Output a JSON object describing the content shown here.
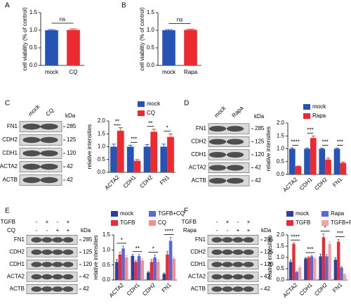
{
  "chart_data": [
    {
      "type": "bar",
      "panel": "A",
      "ylabel": "cell viability (% of control)",
      "categories": [
        "mock",
        "CQ"
      ],
      "values": [
        1.0,
        1.01
      ],
      "errors": [
        0.02,
        0.03
      ],
      "colors": [
        "#2554b5",
        "#ec2a2f"
      ],
      "annotation": "ns",
      "ylim": [
        0,
        1.5
      ],
      "yticks": [
        {
          "value": 0,
          "label": "0.0"
        },
        0.5,
        {
          "value": 1,
          "label": "1.0"
        },
        1.5
      ]
    },
    {
      "type": "bar",
      "panel": "B",
      "ylabel": "cell viability (% of control)",
      "categories": [
        "mock",
        "Rapa"
      ],
      "values": [
        1.0,
        1.01
      ],
      "errors": [
        0.02,
        0.02
      ],
      "colors": [
        "#2554b5",
        "#ec2a2f"
      ],
      "annotation": "ns",
      "ylim": [
        0,
        1.5
      ],
      "yticks": [
        {
          "value": 0,
          "label": "0.0"
        },
        0.5,
        {
          "value": 1,
          "label": "1.0"
        },
        1.5
      ]
    },
    {
      "type": "grouped-bar",
      "ylabel": "relative intensities",
      "categories": [
        "ACTA2",
        "CDH1",
        "CDH2",
        "FN1"
      ],
      "series": [
        {
          "name": "mock",
          "color": "#2554b5",
          "values": [
            1.0,
            1.0,
            1.0,
            1.0
          ],
          "errors": [
            0.1,
            0.06,
            0.08,
            0.1
          ]
        },
        {
          "name": "CQ",
          "color": "#ec2a2f",
          "values": [
            1.62,
            0.45,
            1.58,
            1.38
          ],
          "errors": [
            0.12,
            0.05,
            0.1,
            0.12
          ]
        }
      ],
      "significance": [
        "**",
        "***",
        "**",
        "*"
      ],
      "ylim": [
        0,
        2
      ],
      "yticks": [
        {
          "value": 0,
          "label": "0.0"
        },
        0.5,
        {
          "value": 1,
          "label": "1.0"
        },
        1.5,
        {
          "value": 2,
          "label": "2.0"
        }
      ]
    },
    {
      "type": "grouped-bar",
      "ylabel": "relative intensities",
      "categories": [
        "ACTA2",
        "CDH1",
        "CDH2",
        "FN1"
      ],
      "series": [
        {
          "name": "mock",
          "color": "#2554b5",
          "values": [
            1.0,
            1.0,
            1.0,
            1.0
          ],
          "errors": [
            0.03,
            0.03,
            0.03,
            0.03
          ]
        },
        {
          "name": "Rapa",
          "color": "#ec2a2f",
          "values": [
            0.32,
            1.42,
            0.58,
            0.45
          ],
          "errors": [
            0.01,
            0.08,
            0.06,
            0.04
          ]
        }
      ],
      "significance": [
        "****",
        "***",
        "***",
        "***"
      ],
      "ylim": [
        0,
        2
      ],
      "yticks": [
        {
          "value": 0,
          "label": "0.0"
        },
        0.5,
        {
          "value": 1,
          "label": "1.0"
        },
        1.5,
        {
          "value": 2,
          "label": "2.0"
        }
      ]
    },
    {
      "type": "grouped-bar",
      "ylabel": "relative intensities",
      "categories": [
        "ACTA2",
        "CDH1",
        "CDH2",
        "FN1"
      ],
      "series": [
        {
          "name": "mock",
          "color": "#2b3f9e",
          "values": [
            0.6,
            0.8,
            0.25,
            0.2
          ],
          "errors": [
            0.08,
            0.05,
            0.03,
            0.03
          ]
        },
        {
          "name": "TGFB",
          "color": "#ec2a2f",
          "values": [
            0.85,
            0.6,
            0.6,
            0.85
          ],
          "errors": [
            0.08,
            0.05,
            0.08,
            0.1
          ]
        },
        {
          "name": "TGFB+CQ",
          "color": "#5669d6",
          "values": [
            1.05,
            0.8,
            0.75,
            1.3
          ],
          "errors": [
            0.08,
            0.05,
            0.08,
            0.12
          ]
        },
        {
          "name": "CQ",
          "color": "#f28f8f",
          "values": [
            0.75,
            0.65,
            0.6,
            0.7
          ],
          "errors": [
            0.06,
            0.05,
            0.06,
            0.05
          ]
        }
      ],
      "significance": [
        "*",
        "**",
        "*",
        "****"
      ],
      "ylim": [
        0,
        1.5
      ],
      "yticks": [
        {
          "value": 0,
          "label": "0.0"
        },
        0.5,
        {
          "value": 1,
          "label": "1.0"
        },
        1.5
      ]
    },
    {
      "type": "grouped-bar",
      "ylabel": "relative intensities",
      "categories": [
        "ACTA2",
        "CDH1",
        "CDH2",
        "FN1"
      ],
      "series": [
        {
          "name": "mock",
          "color": "#2b3f9e",
          "values": [
            0.8,
            0.95,
            1.05,
            0.9
          ],
          "errors": [
            0.08,
            0.04,
            0.1,
            0.08
          ]
        },
        {
          "name": "TGFB",
          "color": "#ec2a2f",
          "values": [
            1.6,
            1.0,
            1.9,
            1.7
          ],
          "errors": [
            0.05,
            0.04,
            0.15,
            0.1
          ]
        },
        {
          "name": "Rapa",
          "color": "#5669d6",
          "values": [
            0.35,
            1.05,
            1.05,
            0.55
          ],
          "errors": [
            0.03,
            0.04,
            0.08,
            0.05
          ]
        },
        {
          "name": "TGFB+Rapa",
          "color": "#f4a2a2",
          "values": [
            0.55,
            0.95,
            1.6,
            0.25
          ],
          "errors": [
            0.05,
            0.04,
            0.1,
            0.03
          ]
        }
      ],
      "significance": [
        "****",
        "***",
        "*",
        "***"
      ],
      "ylim": [
        0,
        2
      ],
      "yticks": [
        {
          "value": 0,
          "label": "0.0"
        },
        0.5,
        {
          "value": 1,
          "label": "1.0"
        },
        1.5,
        {
          "value": 2,
          "label": "2.0"
        }
      ]
    }
  ],
  "blots": [
    {
      "panel": "C",
      "lanes": [
        "mock",
        "CQ"
      ],
      "unit": "kDa",
      "rows": [
        {
          "protein": "FN1",
          "kda": 285
        },
        {
          "protein": "CDH2",
          "kda": 125
        },
        {
          "protein": "CDH1",
          "kda": 120
        },
        {
          "protein": "ACTA2",
          "kda": 42
        },
        {
          "protein": "ACTB",
          "kda": 42
        }
      ]
    },
    {
      "panel": "D",
      "lanes": [
        "mock",
        "Rapa"
      ],
      "unit": "kDa",
      "rows": [
        {
          "protein": "FN1",
          "kda": 285
        },
        {
          "protein": "CDH2",
          "kda": 125
        },
        {
          "protein": "CDH1",
          "kda": 120
        },
        {
          "protein": "ACTA2",
          "kda": 42
        },
        {
          "protein": "ACTB",
          "kda": 42
        }
      ]
    },
    {
      "panel": "E",
      "conditions": [
        {
          "name": "TGFB",
          "signs": [
            "-",
            "+",
            "-",
            "+"
          ]
        },
        {
          "name": "CQ",
          "signs": [
            "-",
            "-",
            "+",
            "+"
          ]
        }
      ],
      "unit": "kDa",
      "rows": [
        {
          "protein": "FN1",
          "kda": 285
        },
        {
          "protein": "CDH2",
          "kda": 125
        },
        {
          "protein": "CDH1",
          "kda": 120
        },
        {
          "protein": "ACTA2",
          "kda": 42
        },
        {
          "protein": "ACTB",
          "kda": 42
        }
      ]
    },
    {
      "panel": "F",
      "conditions": [
        {
          "name": "TGFB",
          "signs": [
            "-",
            "+",
            "-",
            "+"
          ]
        },
        {
          "name": "Rapa",
          "signs": [
            "-",
            "-",
            "+",
            "+"
          ]
        }
      ],
      "unit": "kDa",
      "rows": [
        {
          "protein": "FN1",
          "kda": 285
        },
        {
          "protein": "CDH2",
          "kda": 125
        },
        {
          "protein": "CDH1",
          "kda": 120
        },
        {
          "protein": "ACTA2",
          "kda": 42
        },
        {
          "protein": "ACTB",
          "kda": 42
        }
      ]
    }
  ]
}
